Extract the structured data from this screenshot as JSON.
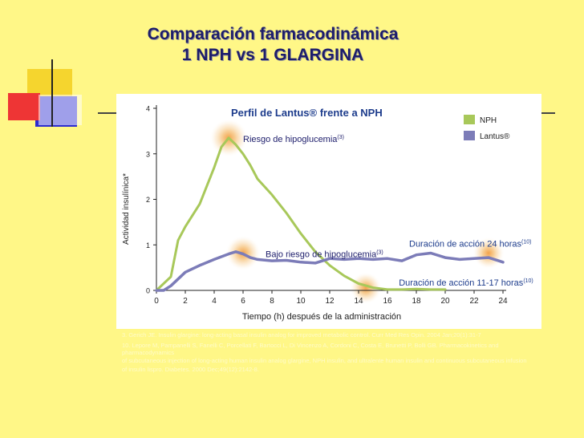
{
  "slide": {
    "title_line1": "Comparación farmacodinámica",
    "title_line2": "1 NPH vs 1 GLARGINA"
  },
  "colors": {
    "background": "#fff787",
    "nph": "#a8c85a",
    "lantus": "#7c7cb8",
    "text_dark": "#1d1d6b"
  },
  "chart_data": {
    "type": "line",
    "title": "Perfil de Lantus® frente a NPH",
    "xlabel": "Tiempo (h)  después de la administración",
    "ylabel": "Actividad insulínica*",
    "xlim": [
      0,
      24
    ],
    "ylim": [
      0,
      4
    ],
    "xticks": [
      "0",
      "2",
      "4",
      "6",
      "8",
      "10",
      "12",
      "14",
      "16",
      "18",
      "20",
      "22",
      "24"
    ],
    "yticks": [
      "0",
      "1",
      "2",
      "3",
      "4"
    ],
    "legend": [
      "NPH",
      "Lantus®"
    ],
    "series": [
      {
        "name": "NPH",
        "x": [
          0,
          1,
          1.5,
          2,
          3,
          4,
          4.5,
          5,
          5.5,
          6,
          6.5,
          7,
          8,
          9,
          10,
          11,
          12,
          13,
          14,
          15,
          16,
          17,
          18,
          19,
          20
        ],
        "y": [
          0,
          0.3,
          1.1,
          1.4,
          1.9,
          2.7,
          3.15,
          3.35,
          3.2,
          3.0,
          2.75,
          2.45,
          2.1,
          1.7,
          1.25,
          0.85,
          0.55,
          0.32,
          0.15,
          0.06,
          0.02,
          0.02,
          0.03,
          0.02,
          0.02
        ]
      },
      {
        "name": "Lantus®",
        "x": [
          0,
          0.5,
          1,
          1.5,
          2,
          3,
          4,
          5,
          5.5,
          6,
          6.5,
          7,
          8,
          9,
          10,
          11,
          12,
          13,
          14,
          15,
          16,
          17,
          18,
          19,
          20,
          21,
          22,
          23,
          24
        ],
        "y": [
          0,
          0,
          0.1,
          0.25,
          0.4,
          0.55,
          0.68,
          0.8,
          0.85,
          0.8,
          0.72,
          0.68,
          0.65,
          0.66,
          0.62,
          0.6,
          0.7,
          0.68,
          0.7,
          0.68,
          0.7,
          0.65,
          0.78,
          0.82,
          0.72,
          0.68,
          0.7,
          0.72,
          0.62
        ]
      }
    ],
    "annotations": [
      {
        "text": "Riesgo de hipoglucemia",
        "ref": "(3)",
        "x": 5,
        "y": 3.35
      },
      {
        "text": "Bajo riesgo de hipoglucemia",
        "ref": "(3)",
        "x": 6,
        "y": 0.82
      },
      {
        "text": "Duración de acción 24 horas",
        "ref": "(10)",
        "x": 23,
        "y": 0.82
      },
      {
        "text": "Duración de acción 11-17 horas",
        "ref": "(10)",
        "x": 14.5,
        "y": 0.05
      }
    ]
  },
  "references": [
    "3. Gerich JE. Insulin glargine: long-acting basal insulin analog for improved metabolic control. Curr Med Res Opin. 2004 Jan;20(1):31-7",
    "10. Lepore M, Pampanelli S, Fanelli C, Porcellati F, Bartocci L, Di Vincenzo A, Cordoni C, Costa E, Brunetti P, Bolli GB. Pharmacokinetics and pharmacodynamics",
    "of subcutaneous injection of long-acting human insulin analog glargine, NPH insulin, and ultralente human insulin and continuous subcutaneous infusion",
    "of insulin lispro. Diabetes. 2000 Dec;49(12):2142-8."
  ]
}
